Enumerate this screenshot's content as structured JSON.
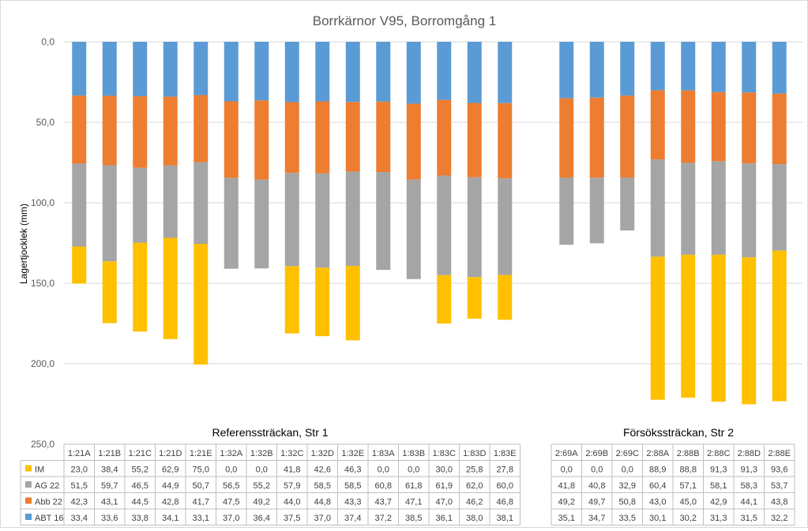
{
  "chart_data": {
    "type": "bar",
    "stacked": true,
    "title": "Borrkärnor V95, Borromgång 1",
    "ylabel": "Lagertjocklek (mm)",
    "xlabel": "",
    "ylim": [
      0,
      250
    ],
    "y_inverted": true,
    "y_ticks": [
      "0,0",
      "50,0",
      "100,0",
      "150,0",
      "200,0",
      "250,0"
    ],
    "group_titles": [
      "Referenssträckan, Str 1",
      "Försökssträckan, Str 2"
    ],
    "groups": [
      [
        "1:21A",
        "1:21B",
        "1:21C",
        "1:21D",
        "1:21E",
        "1:32A",
        "1:32B",
        "1:32C",
        "1:32D",
        "1:32E",
        "1:83A",
        "1:83B",
        "1:83C",
        "1:83D",
        "1:83E"
      ],
      [
        "2:69A",
        "2:69B",
        "2:69C",
        "2:88A",
        "2:88B",
        "2:88C",
        "2:88D",
        "2:88E"
      ]
    ],
    "series": [
      {
        "name": "ABT 16",
        "color": "#5b9bd5",
        "values": [
          33.4,
          33.6,
          33.8,
          34.1,
          33.1,
          37.0,
          36.4,
          37.5,
          37.0,
          37.4,
          37.2,
          38.5,
          36.1,
          38.0,
          38.1,
          35.1,
          34.7,
          33.5,
          30.1,
          30.2,
          31.3,
          31.5,
          32.2
        ],
        "labels": [
          "33,4",
          "33,6",
          "33,8",
          "34,1",
          "33,1",
          "37,0",
          "36,4",
          "37,5",
          "37,0",
          "37,4",
          "37,2",
          "38,5",
          "36,1",
          "38,0",
          "38,1",
          "35,1",
          "34,7",
          "33,5",
          "30,1",
          "30,2",
          "31,3",
          "31,5",
          "32,2"
        ]
      },
      {
        "name": "Abb 22",
        "color": "#ed7d31",
        "values": [
          42.3,
          43.1,
          44.5,
          42.8,
          41.7,
          47.5,
          49.2,
          44.0,
          44.8,
          43.3,
          43.7,
          47.1,
          47.0,
          46.2,
          46.8,
          49.2,
          49.7,
          50.8,
          43.0,
          45.0,
          42.9,
          44.1,
          43.8
        ],
        "labels": [
          "42,3",
          "43,1",
          "44,5",
          "42,8",
          "41,7",
          "47,5",
          "49,2",
          "44,0",
          "44,8",
          "43,3",
          "43,7",
          "47,1",
          "47,0",
          "46,2",
          "46,8",
          "49,2",
          "49,7",
          "50,8",
          "43,0",
          "45,0",
          "42,9",
          "44,1",
          "43,8"
        ]
      },
      {
        "name": "AG 22",
        "color": "#a5a5a5",
        "values": [
          51.5,
          59.7,
          46.5,
          44.9,
          50.7,
          56.5,
          55.2,
          57.9,
          58.5,
          58.5,
          60.8,
          61.8,
          61.9,
          62.0,
          60.0,
          41.8,
          40.8,
          32.9,
          60.4,
          57.1,
          58.1,
          58.3,
          53.7
        ],
        "labels": [
          "51,5",
          "59,7",
          "46,5",
          "44,9",
          "50,7",
          "56,5",
          "55,2",
          "57,9",
          "58,5",
          "58,5",
          "60,8",
          "61,8",
          "61,9",
          "62,0",
          "60,0",
          "41,8",
          "40,8",
          "32,9",
          "60,4",
          "57,1",
          "58,1",
          "58,3",
          "53,7"
        ]
      },
      {
        "name": "IM",
        "color": "#ffc000",
        "values": [
          23.0,
          38.4,
          55.2,
          62.9,
          75.0,
          0.0,
          0.0,
          41.8,
          42.6,
          46.3,
          0.0,
          0.0,
          30.0,
          25.8,
          27.8,
          0.0,
          0.0,
          0.0,
          88.9,
          88.8,
          91.3,
          91.3,
          93.6
        ],
        "labels": [
          "23,0",
          "38,4",
          "55,2",
          "62,9",
          "75,0",
          "0,0",
          "0,0",
          "41,8",
          "42,6",
          "46,3",
          "0,0",
          "0,0",
          "30,0",
          "25,8",
          "27,8",
          "0,0",
          "0,0",
          "0,0",
          "88,9",
          "88,8",
          "91,3",
          "91,3",
          "93,6"
        ]
      }
    ],
    "table_row_order": [
      "IM",
      "AG 22",
      "Abb 22",
      "ABT 16"
    ]
  }
}
